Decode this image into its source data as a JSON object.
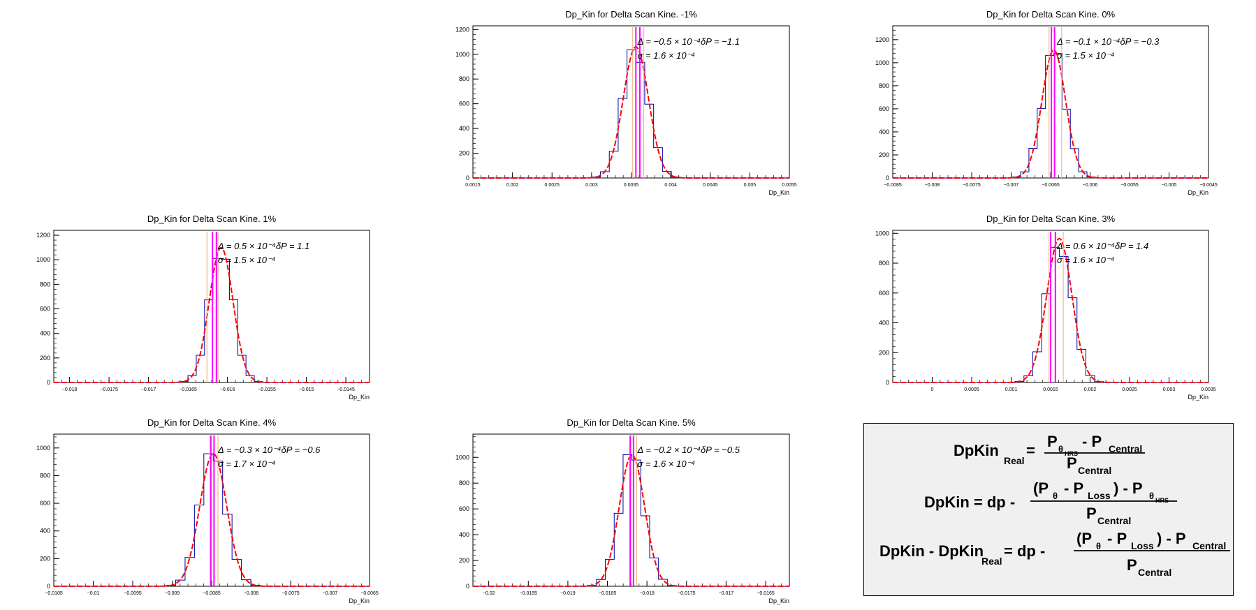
{
  "chart_data": [
    {
      "type": "histogram",
      "panel": "row1-col2",
      "title": "Dp_Kin for Delta Scan Kine. -1%",
      "xlabel": "Dp_Kin",
      "ylabel": "",
      "xlim": [
        0.0015,
        0.0055
      ],
      "ylim": [
        0,
        1230
      ],
      "x_ticks": [
        "0.0015",
        "0.002",
        "0.0025",
        "0.003",
        "0.0035",
        "0.004",
        "0.0045",
        "0.005",
        "0.0055"
      ],
      "y_ticks": [
        "0",
        "200",
        "400",
        "600",
        "800",
        "1000",
        "1200"
      ],
      "fit": {
        "type": "gaussian",
        "mean": 0.00356,
        "sigma": 0.00016,
        "amplitude": 1060
      },
      "markers": {
        "orange": [
          0.00352,
          0.00366
        ],
        "magenta": [
          0.00356,
          0.00361
        ]
      },
      "annotations": {
        "line1": "Δ = −0.5 × 10⁻⁴δP = −1.1",
        "line2": "σ = 1.6 × 10⁻⁴"
      }
    },
    {
      "type": "histogram",
      "panel": "row1-col3",
      "title": "Dp_Kin for Delta Scan Kine. 0%",
      "xlabel": "Dp_Kin",
      "ylabel": "",
      "xlim": [
        -0.0085,
        -0.0045
      ],
      "ylim": [
        0,
        1320
      ],
      "x_ticks": [
        "−0.0085",
        "−0.008",
        "−0.0075",
        "−0.007",
        "−0.0065",
        "−0.006",
        "−0.0055",
        "−0.005",
        "−0.0045"
      ],
      "y_ticks": [
        "0",
        "200",
        "400",
        "600",
        "800",
        "1000",
        "1200"
      ],
      "fit": {
        "type": "gaussian",
        "mean": -0.00646,
        "sigma": 0.00015,
        "amplitude": 1110
      },
      "markers": {
        "orange": [
          -0.00652,
          -0.00636
        ],
        "magenta": [
          -0.00649,
          -0.00645
        ]
      },
      "annotations": {
        "line1": "Δ = −0.1 × 10⁻⁴δP = −0.3",
        "line2": "σ = 1.5 × 10⁻⁴"
      }
    },
    {
      "type": "histogram",
      "panel": "row2-col1",
      "title": "Dp_Kin for Delta Scan Kine. 1%",
      "xlabel": "Dp_Kin",
      "ylabel": "",
      "xlim": [
        -0.0182,
        -0.0142
      ],
      "ylim": [
        0,
        1240
      ],
      "x_ticks": [
        "−0.018",
        "−0.0175",
        "−0.017",
        "−0.0165",
        "−0.016",
        "−0.0155",
        "−0.015",
        "−0.0145"
      ],
      "y_ticks": [
        "0",
        "200",
        "400",
        "600",
        "800",
        "1000",
        "1200"
      ],
      "fit": {
        "type": "gaussian",
        "mean": -0.01608,
        "sigma": 0.00015,
        "amplitude": 1100
      },
      "markers": {
        "orange": [
          -0.01626,
          -0.01612
        ],
        "magenta": [
          -0.01619,
          -0.01614
        ]
      },
      "annotations": {
        "line1": "Δ = 0.5 × 10⁻⁴δP = 1.1",
        "line2": "σ = 1.5 × 10⁻⁴"
      }
    },
    {
      "type": "histogram",
      "panel": "row2-col3",
      "title": "Dp_Kin for Delta Scan Kine. 3%",
      "xlabel": "Dp_Kin",
      "ylabel": "",
      "xlim": [
        -0.0005,
        0.0035
      ],
      "ylim": [
        0,
        1020
      ],
      "x_ticks": [
        "0",
        "0.0005",
        "0.001",
        "0.0015",
        "0.002",
        "0.0025",
        "0.003",
        "0.0035"
      ],
      "y_ticks": [
        "0",
        "200",
        "400",
        "600",
        "800",
        "1000"
      ],
      "fit": {
        "type": "gaussian",
        "mean": 0.00161,
        "sigma": 0.00016,
        "amplitude": 965
      },
      "markers": {
        "orange": [
          0.00148,
          0.00166
        ],
        "magenta": [
          0.0015,
          0.00156
        ]
      },
      "annotations": {
        "line1": "Δ = 0.6 × 10⁻⁴δP = 1.4",
        "line2": "σ = 1.6 × 10⁻⁴"
      }
    },
    {
      "type": "histogram",
      "panel": "row3-col1",
      "title": "Dp_Kin for Delta Scan Kine. 4%",
      "xlabel": "Dp_Kin",
      "ylabel": "",
      "xlim": [
        -0.0105,
        -0.0065
      ],
      "ylim": [
        0,
        1100
      ],
      "x_ticks": [
        "−0.0105",
        "−0.01",
        "−0.0095",
        "−0.009",
        "−0.0085",
        "−0.008",
        "−0.0075",
        "−0.007",
        "−0.0065"
      ],
      "y_ticks": [
        "0",
        "200",
        "400",
        "600",
        "800",
        "1000"
      ],
      "fit": {
        "type": "gaussian",
        "mean": -0.00848,
        "sigma": 0.00017,
        "amplitude": 960
      },
      "markers": {
        "orange": [
          -0.00852,
          -0.00842
        ],
        "magenta": [
          -0.00851,
          -0.00847
        ]
      },
      "annotations": {
        "line1": "Δ = −0.3 × 10⁻⁴δP = −0.6",
        "line2": "σ = 1.7 × 10⁻⁴"
      }
    },
    {
      "type": "histogram",
      "panel": "row3-col2",
      "title": "Dp_Kin for Delta Scan Kine. 5%",
      "xlabel": "Dp_Kin",
      "ylabel": "",
      "xlim": [
        -0.0202,
        -0.0162
      ],
      "ylim": [
        0,
        1180
      ],
      "x_ticks": [
        "−0.02",
        "−0.0195",
        "−0.019",
        "−0.0185",
        "−0.018",
        "−0.0175",
        "−0.017",
        "−0.0165"
      ],
      "y_ticks": [
        "0",
        "200",
        "400",
        "600",
        "800",
        "1000"
      ],
      "fit": {
        "type": "gaussian",
        "mean": -0.01819,
        "sigma": 0.00016,
        "amplitude": 1020
      },
      "markers": {
        "orange": [
          -0.01822,
          -0.01813
        ],
        "magenta": [
          -0.01821,
          -0.01817
        ]
      },
      "annotations": {
        "line1": "Δ = −0.2 × 10⁻⁴δP = −0.5",
        "line2": "σ = 1.6 × 10⁻⁴"
      }
    }
  ],
  "formulas": [
    {
      "lhs": "DpKin",
      "lhs_sub": "Real",
      "eq": "=",
      "num": "P",
      "num_sub": "θ",
      "num_subsub": "HRS",
      "num_tail": "- P",
      "num_tail_sub": "Central",
      "den": "P",
      "den_sub": "Central"
    },
    {
      "lhs": "DpKin = dp -",
      "num_a": "(P",
      "num_a_sub": "θ",
      "num_b": "- P",
      "num_b_sub": "Loss",
      "num_c": ") - P",
      "num_c_sub": "θ",
      "num_c_subsub": "HRS",
      "den": "P",
      "den_sub": "Central"
    },
    {
      "lhs": "DpKin - DpKin",
      "lhs_sub": "Real",
      "eq": "= dp -",
      "num_a": "(P",
      "num_a_sub": "θ",
      "num_b": "- P",
      "num_b_sub": "Loss",
      "num_c": ") - P",
      "num_c_sub": "Central",
      "den": "P",
      "den_sub": "Central"
    }
  ],
  "colors": {
    "histogram": "#0000aa",
    "fit": "#ff0000",
    "marker_orange": "#e8b070",
    "marker_magenta": "#ff00ff"
  }
}
